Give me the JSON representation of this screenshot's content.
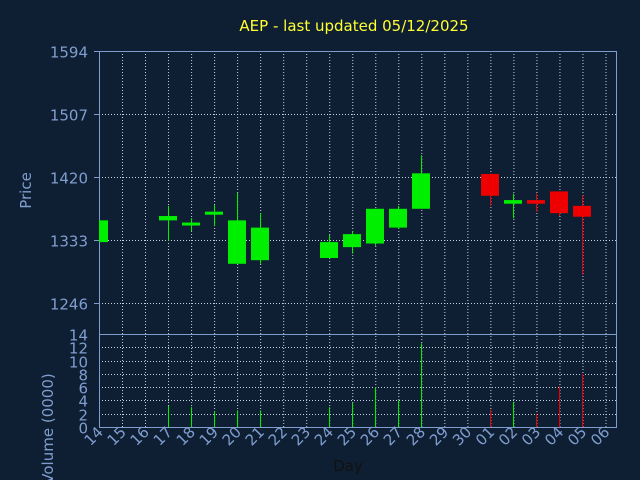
{
  "colors": {
    "background": "#0f1f33",
    "axis": "#7f9ecf",
    "grid": "#c8d0e0",
    "title": "#ffff33",
    "label": "#7f9ecf",
    "xlabel": "#111111",
    "up": "#00ee00",
    "down": "#ee0000"
  },
  "chart_data": {
    "type": "candlestick",
    "title": "AEP - last updated 05/12/2025",
    "xlabel": "Day",
    "price_panel": {
      "ylabel": "Price",
      "yticks": [
        1246,
        1333,
        1420,
        1507,
        1594
      ],
      "ylim": [
        1203,
        1594
      ],
      "grid": true
    },
    "volume_panel": {
      "ylabel": "Volume (0000)",
      "yticks": [
        0,
        2,
        4,
        6,
        8,
        10,
        12,
        14
      ],
      "ylim": [
        0,
        14
      ],
      "grid": true
    },
    "x_ticks": [
      "14",
      "15",
      "16",
      "17",
      "18",
      "19",
      "20",
      "21",
      "22",
      "23",
      "24",
      "25",
      "26",
      "27",
      "28",
      "29",
      "30",
      "01",
      "02",
      "03",
      "04",
      "05",
      "06"
    ],
    "candles": [
      {
        "day": "14",
        "open": 1330,
        "close": 1360,
        "high": 1360,
        "low": 1330,
        "volume": 0,
        "direction": "up"
      },
      {
        "day": "17",
        "open": 1360,
        "close": 1366,
        "high": 1380,
        "low": 1332,
        "volume": 3.2,
        "direction": "up"
      },
      {
        "day": "18",
        "open": 1354,
        "close": 1357,
        "high": 1363,
        "low": 1345,
        "volume": 3.0,
        "direction": "up"
      },
      {
        "day": "19",
        "open": 1369,
        "close": 1372,
        "high": 1381,
        "low": 1352,
        "volume": 2.4,
        "direction": "up"
      },
      {
        "day": "20",
        "open": 1300,
        "close": 1360,
        "high": 1398,
        "low": 1300,
        "volume": 2.5,
        "direction": "up"
      },
      {
        "day": "21",
        "open": 1305,
        "close": 1350,
        "high": 1370,
        "low": 1300,
        "volume": 2.5,
        "direction": "up"
      },
      {
        "day": "24",
        "open": 1308,
        "close": 1330,
        "high": 1340,
        "low": 1308,
        "volume": 3.0,
        "direction": "up"
      },
      {
        "day": "25",
        "open": 1323,
        "close": 1341,
        "high": 1345,
        "low": 1314,
        "volume": 3.6,
        "direction": "up"
      },
      {
        "day": "26",
        "open": 1328,
        "close": 1376,
        "high": 1376,
        "low": 1325,
        "volume": 6.0,
        "direction": "up"
      },
      {
        "day": "27",
        "open": 1350,
        "close": 1376,
        "high": 1380,
        "low": 1348,
        "volume": 4.0,
        "direction": "up"
      },
      {
        "day": "28",
        "open": 1376,
        "close": 1425,
        "high": 1450,
        "low": 1376,
        "volume": 12.6,
        "direction": "up"
      },
      {
        "day": "01",
        "open": 1424,
        "close": 1394,
        "high": 1425,
        "low": 1380,
        "volume": 2.6,
        "direction": "down"
      },
      {
        "day": "02",
        "open": 1383,
        "close": 1388,
        "high": 1397,
        "low": 1363,
        "volume": 3.8,
        "direction": "up"
      },
      {
        "day": "03",
        "open": 1388,
        "close": 1383,
        "high": 1397,
        "low": 1372,
        "volume": 2.0,
        "direction": "down"
      },
      {
        "day": "04",
        "open": 1400,
        "close": 1370,
        "high": 1400,
        "low": 1366,
        "volume": 6.1,
        "direction": "down"
      },
      {
        "day": "05",
        "open": 1380,
        "close": 1365,
        "high": 1395,
        "low": 1285,
        "volume": 8.0,
        "direction": "down"
      }
    ]
  }
}
